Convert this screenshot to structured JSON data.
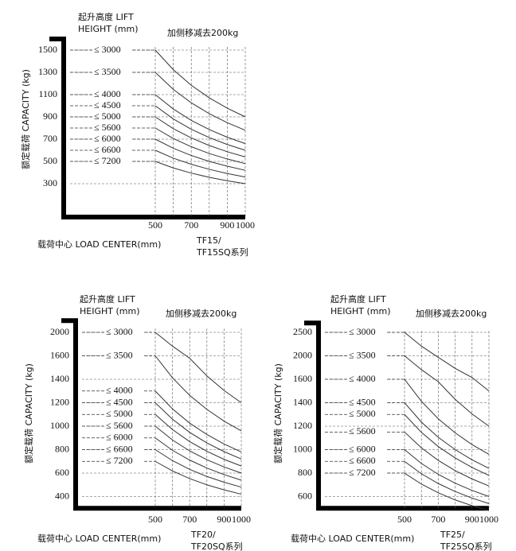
{
  "chart_data": [
    {
      "type": "line",
      "legend_title": [
        "起升高度 LIFT",
        "HEIGHT (mm)"
      ],
      "annotation": "加侧移减去200kg",
      "ylabel": "额定载荷 CAPACITY (kg)",
      "xlabel": "载荷中心   LOAD CENTER(mm)",
      "model": [
        "TF15/",
        "TF15SQ系列"
      ],
      "x": [
        500,
        600,
        700,
        800,
        900,
        1000
      ],
      "xlim": [
        500,
        1000
      ],
      "xticks": [
        500,
        700,
        900,
        1000
      ],
      "ylim": [
        0,
        1600
      ],
      "yticks": [
        1500,
        1300,
        1100,
        900,
        700,
        500,
        300
      ],
      "series": [
        {
          "name": "≤ 3000",
          "color": "#333333",
          "values": [
            1500,
            1324,
            1184,
            1071,
            978,
            900
          ]
        },
        {
          "name": "≤ 3500",
          "color": "#333333",
          "values": [
            1300,
            1147,
            1026,
            929,
            848,
            780
          ]
        },
        {
          "name": "≤ 4000",
          "color": "#333333",
          "values": [
            1100,
            971,
            868,
            786,
            717,
            660
          ]
        },
        {
          "name": "≤ 4500",
          "color": "#333333",
          "values": [
            1000,
            882,
            789,
            714,
            652,
            600
          ]
        },
        {
          "name": "≤ 5000",
          "color": "#333333",
          "values": [
            900,
            794,
            711,
            643,
            587,
            540
          ]
        },
        {
          "name": "≤ 5600",
          "color": "#333333",
          "values": [
            800,
            706,
            632,
            571,
            522,
            480
          ]
        },
        {
          "name": "≤ 6000",
          "color": "#333333",
          "values": [
            700,
            618,
            553,
            500,
            457,
            420
          ]
        },
        {
          "name": "≤ 6600",
          "color": "#333333",
          "values": [
            600,
            529,
            474,
            429,
            391,
            360
          ]
        },
        {
          "name": "≤ 7200",
          "color": "#333333",
          "values": [
            500,
            441,
            395,
            357,
            326,
            300
          ]
        }
      ]
    },
    {
      "type": "line",
      "legend_title": [
        "起升高度 LIFT",
        "HEIGHT (mm)"
      ],
      "annotation": "加侧移减去200kg",
      "ylabel": "额定载荷 CAPACITY (kg)",
      "xlabel": "载荷中心   LOAD CENTER(mm)",
      "model": [
        "TF20/",
        "TF20SQ系列"
      ],
      "x": [
        500,
        600,
        700,
        800,
        900,
        1000
      ],
      "xlim": [
        500,
        1000
      ],
      "xticks": [
        500,
        700,
        900,
        1000
      ],
      "ylim": [
        300,
        2200
      ],
      "yticks": [
        2000,
        1600,
        1400,
        1200,
        1000,
        800,
        600,
        400
      ],
      "series": [
        {
          "name": "≤ 3000",
          "color": "#333333",
          "values": [
            2000,
            1765,
            1579,
            1429,
            1304,
            1200
          ]
        },
        {
          "name": "≤ 3500",
          "color": "#333333",
          "values": [
            1600,
            1412,
            1263,
            1143,
            1043,
            960
          ]
        },
        {
          "name": "≤ 4000",
          "color": "#333333",
          "values": [
            1300,
            1147,
            1026,
            929,
            848,
            780
          ]
        },
        {
          "name": "≤ 4500",
          "color": "#333333",
          "values": [
            1200,
            1059,
            947,
            857,
            783,
            720
          ]
        },
        {
          "name": "≤ 5000",
          "color": "#333333",
          "values": [
            1100,
            971,
            868,
            786,
            717,
            660
          ]
        },
        {
          "name": "≤ 5600",
          "color": "#333333",
          "values": [
            1000,
            882,
            789,
            714,
            652,
            600
          ]
        },
        {
          "name": "≤ 6000",
          "color": "#333333",
          "values": [
            900,
            794,
            711,
            643,
            587,
            540
          ]
        },
        {
          "name": "≤ 6600",
          "color": "#333333",
          "values": [
            800,
            706,
            632,
            571,
            522,
            480
          ]
        },
        {
          "name": "≤ 7200",
          "color": "#333333",
          "values": [
            700,
            618,
            553,
            500,
            457,
            420
          ]
        }
      ]
    },
    {
      "type": "line",
      "legend_title": [
        "起升高度 LIFT",
        "HEIGHT (mm)"
      ],
      "annotation": "加侧移减去200kg",
      "ylabel": "额定载荷 CAPACITY (kg)",
      "xlabel": "载荷中心   LOAD CENTER(mm)",
      "model": [
        "TF25/",
        "TF25SQ系列"
      ],
      "x": [
        500,
        600,
        700,
        800,
        900,
        1000
      ],
      "xlim": [
        500,
        1000
      ],
      "xticks": [
        500,
        700,
        900,
        1000
      ],
      "ylim": [
        500,
        2700
      ],
      "yticks": [
        2500,
        2000,
        1600,
        1400,
        1200,
        1000,
        800,
        600
      ],
      "series": [
        {
          "name": "≤ 3000",
          "color": "#333333",
          "values": [
            2500,
            2206,
            1974,
            1786,
            1630,
            1500
          ]
        },
        {
          "name": "≤ 3500",
          "color": "#333333",
          "values": [
            2000,
            1765,
            1579,
            1429,
            1304,
            1200
          ]
        },
        {
          "name": "≤ 4000",
          "color": "#333333",
          "values": [
            1600,
            1412,
            1263,
            1143,
            1043,
            960
          ]
        },
        {
          "name": "≤ 4500",
          "color": "#333333",
          "values": [
            1400,
            1235,
            1105,
            1000,
            913,
            840
          ]
        },
        {
          "name": "≤ 5000",
          "color": "#333333",
          "values": [
            1300,
            1147,
            1026,
            929,
            848,
            780
          ]
        },
        {
          "name": "≤ 5600",
          "color": "#333333",
          "values": [
            1150,
            1015,
            908,
            821,
            750,
            690
          ]
        },
        {
          "name": "≤ 6000",
          "color": "#333333",
          "values": [
            1000,
            882,
            789,
            714,
            652,
            600
          ]
        },
        {
          "name": "≤ 6600",
          "color": "#333333",
          "values": [
            900,
            794,
            711,
            643,
            587,
            540
          ]
        },
        {
          "name": "≤ 7200",
          "color": "#333333",
          "values": [
            800,
            706,
            632,
            571,
            522,
            480
          ]
        }
      ]
    }
  ]
}
